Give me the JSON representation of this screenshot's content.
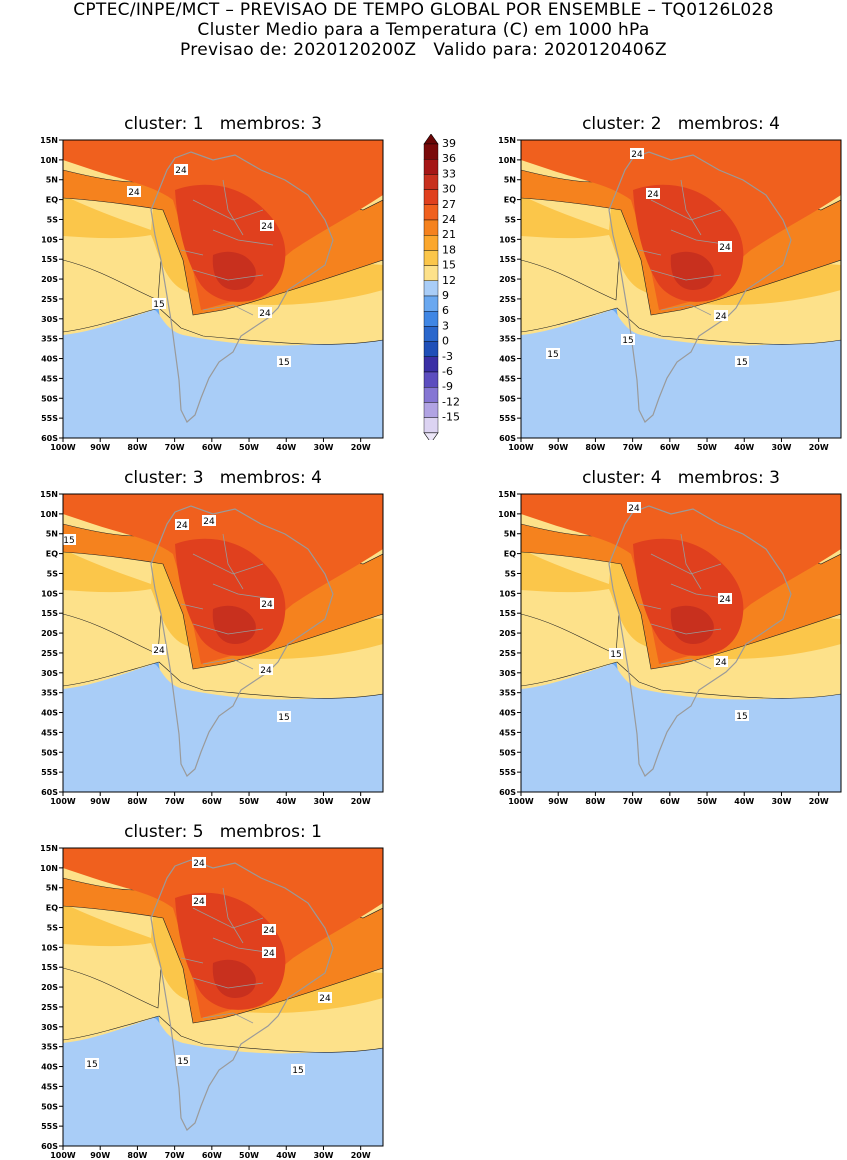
{
  "header": {
    "line1": "CPTEC/INPE/MCT – PREVISAO DE TEMPO GLOBAL POR ENSEMBLE – TQ0126L028",
    "line2": "Cluster Medio para a Temperatura (C) em 1000 hPa",
    "line3": "Previsao de: 2020120200Z   Valido para: 2020120406Z"
  },
  "axes": {
    "lat_labels": [
      "15N",
      "10N",
      "5N",
      "EQ",
      "5S",
      "10S",
      "15S",
      "20S",
      "25S",
      "30S",
      "35S",
      "40S",
      "45S",
      "50S",
      "55S",
      "60S"
    ],
    "lon_labels": [
      "100W",
      "90W",
      "80W",
      "70W",
      "60W",
      "50W",
      "40W",
      "30W",
      "20W"
    ]
  },
  "colorbar": {
    "labels": [
      "39",
      "36",
      "33",
      "30",
      "27",
      "24",
      "21",
      "18",
      "15",
      "12",
      "9",
      "6",
      "3",
      "0",
      "-3",
      "-6",
      "-9",
      "-12",
      "-15"
    ],
    "colors": [
      "#7a0a0a",
      "#a51616",
      "#c8301e",
      "#e0401e",
      "#f0601e",
      "#f5821e",
      "#fba72d",
      "#fbc64a",
      "#fde18a",
      "#a9cdf7",
      "#6aa8f0",
      "#3f86e4",
      "#2a67cc",
      "#1f4fb8",
      "#3a2fa5",
      "#5c4dbf",
      "#8576d3",
      "#b1a3e3",
      "#dcd3f2"
    ],
    "extremes": {
      "top": "#6a0606",
      "bottom": "#ece6f8"
    }
  },
  "panels": [
    {
      "title": "cluster: 1   membros: 3",
      "contour_labels": [
        "24",
        "24",
        "24",
        "24",
        "15",
        "15"
      ]
    },
    {
      "title": "cluster: 2   membros: 4",
      "contour_labels": [
        "24",
        "24",
        "24",
        "24",
        "15",
        "15",
        "15"
      ]
    },
    {
      "title": "cluster: 3   membros: 4",
      "contour_labels": [
        "24",
        "24",
        "24",
        "24",
        "24",
        "15",
        "15"
      ]
    },
    {
      "title": "cluster: 4   membros: 3",
      "contour_labels": [
        "24",
        "24",
        "24",
        "15",
        "15"
      ]
    },
    {
      "title": "cluster: 5   membros: 1",
      "contour_labels": [
        "24",
        "24",
        "24",
        "24",
        "24",
        "15",
        "15",
        "15"
      ]
    }
  ]
}
